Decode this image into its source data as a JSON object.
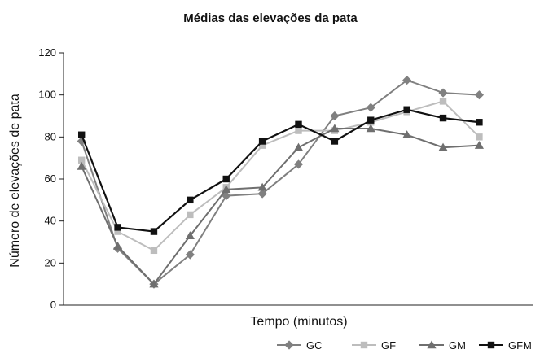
{
  "chart_data": {
    "type": "line",
    "title": "Médias das elevações da pata",
    "xlabel": "Tempo (minutos)",
    "ylabel": "Número de elevações de pata",
    "ylim": [
      0,
      120
    ],
    "yticks": [
      0,
      20,
      40,
      60,
      80,
      100,
      120
    ],
    "x": [
      1,
      2,
      3,
      4,
      5,
      6,
      7,
      8,
      9,
      10,
      11,
      12,
      13
    ],
    "grid": false,
    "legend_position": "bottom-right",
    "series": [
      {
        "name": "GC",
        "marker": "diamond",
        "color": "#808080",
        "values": [
          78,
          27,
          10,
          24,
          52,
          53,
          67,
          90,
          94,
          107,
          101,
          100,
          null
        ]
      },
      {
        "name": "GF",
        "marker": "square",
        "color": "#bdbdbd",
        "values": [
          69,
          35,
          26,
          43,
          56,
          76,
          83,
          83,
          87,
          92,
          97,
          80,
          null
        ]
      },
      {
        "name": "GM",
        "marker": "triangle",
        "color": "#6f6f6f",
        "values": [
          66,
          28,
          10,
          33,
          55,
          56,
          75,
          84,
          84,
          81,
          75,
          76,
          null
        ]
      },
      {
        "name": "GFM",
        "marker": "square",
        "color": "#111111",
        "values": [
          81,
          37,
          35,
          50,
          60,
          78,
          86,
          78,
          88,
          93,
          89,
          87,
          null
        ]
      }
    ]
  }
}
